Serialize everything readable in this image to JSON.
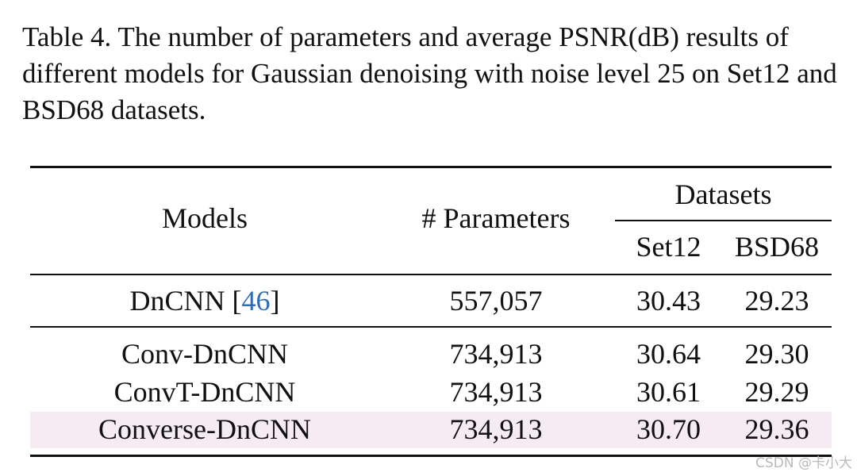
{
  "caption": "Table 4. The number of parameters and average PSNR(dB) results of different models for Gaussian denoising with noise level 25 on Set12 and BSD68 datasets.",
  "table": {
    "headers": {
      "models": "Models",
      "parameters": "# Parameters",
      "datasets": "Datasets",
      "set12": "Set12",
      "bsd68": "BSD68"
    },
    "baseline": {
      "model": "DnCNN",
      "citation_open": " [",
      "citation": "46",
      "citation_close": "]",
      "parameters": "557,057",
      "set12": "30.43",
      "bsd68": "29.23"
    },
    "rows": [
      {
        "model": "Conv-DnCNN",
        "parameters": "734,913",
        "set12": "30.64",
        "bsd68": "29.30",
        "highlighted": false
      },
      {
        "model": "ConvT-DnCNN",
        "parameters": "734,913",
        "set12": "30.61",
        "bsd68": "29.29",
        "highlighted": false
      },
      {
        "model": "Converse-DnCNN",
        "parameters": "734,913",
        "set12": "30.70",
        "bsd68": "29.36",
        "highlighted": true
      }
    ],
    "highlight_color": "#f7ebf3",
    "citation_color": "#2f6db5"
  },
  "watermark": "CSDN @卡小大"
}
